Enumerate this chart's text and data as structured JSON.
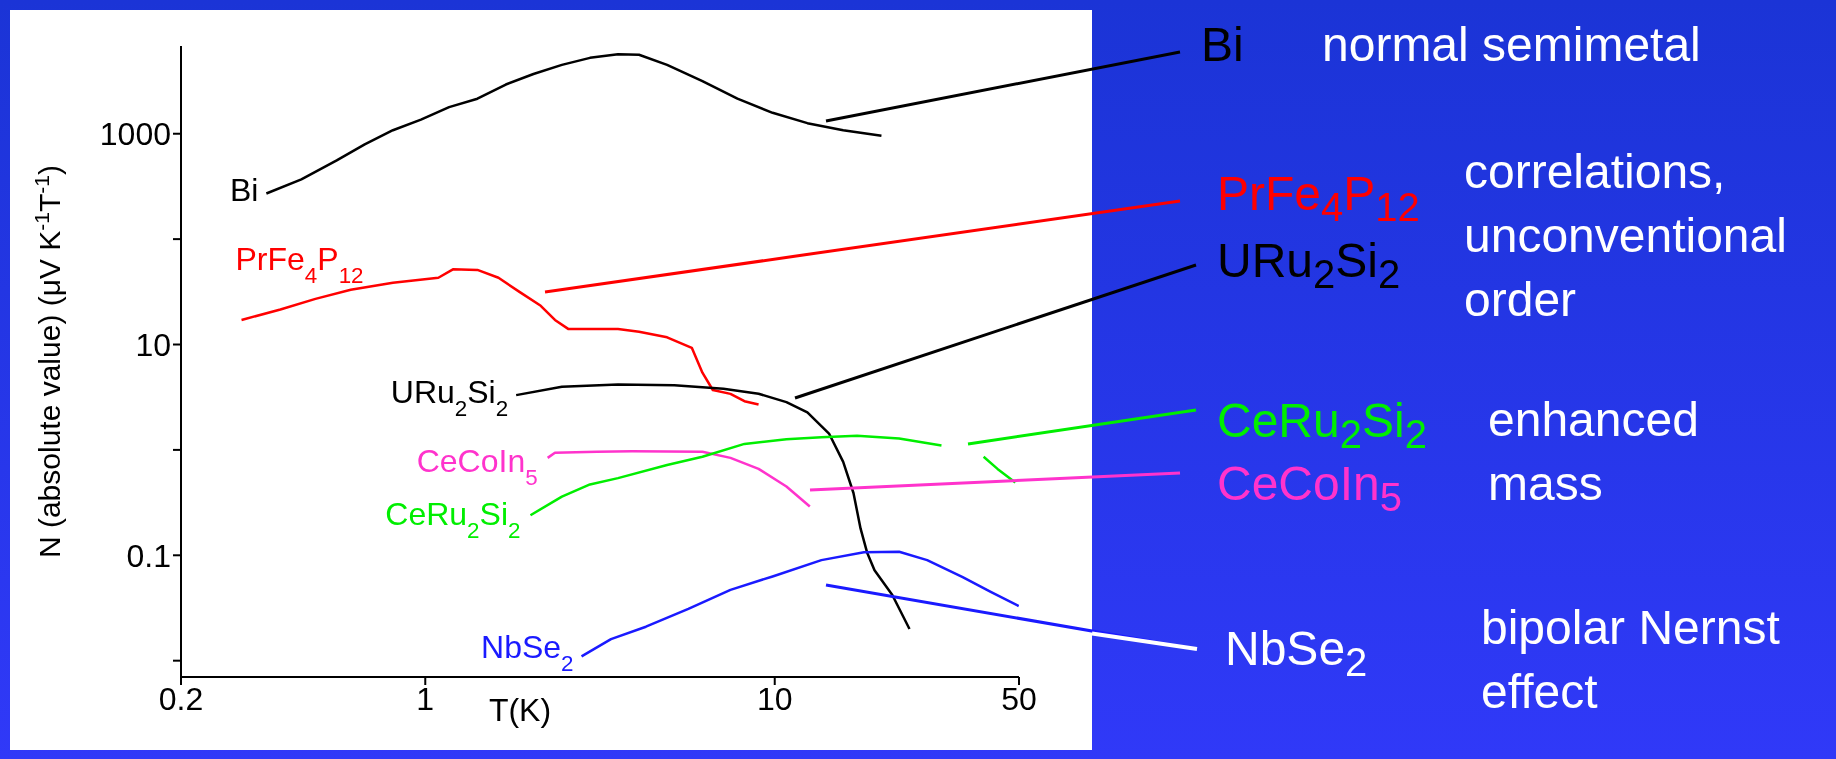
{
  "chart_data": {
    "type": "line",
    "xlabel": "T(K)",
    "ylabel": "N (absolute value) (μV K$^{-1}$T$^{-1}$)",
    "log": "xy",
    "marker": "none",
    "xlim": [
      0.2,
      50
    ],
    "xticks": [
      0.2,
      1,
      10,
      50
    ],
    "ylim": [
      0.007,
      6800
    ],
    "yticks": [
      {
        "value": 0.01,
        "label": null
      },
      0.1,
      {
        "value": 1,
        "label": null
      },
      10,
      {
        "value": 100,
        "label": null
      },
      1000
    ],
    "series": [
      {
        "name": "Bi",
        "color": "#000000",
        "x": [
          0.351,
          0.442,
          0.558,
          0.671,
          0.808,
          0.972,
          1.17,
          1.41,
          1.7,
          2.04,
          2.46,
          2.96,
          3.56,
          4.09,
          4.92,
          6.21,
          7.82,
          9.86,
          12.4,
          15.7,
          20.2
        ],
        "values": [
          271,
          369,
          558,
          794,
          1080,
          1360,
          1790,
          2150,
          2930,
          3690,
          4500,
          5250,
          5670,
          5620,
          4500,
          3160,
          2150,
          1580,
          1260,
          1080,
          955
        ]
      },
      {
        "name": "PrFe$_{4}$P$_{12}$",
        "color": "#ff0000",
        "x": [
          0.298,
          0.385,
          0.485,
          0.612,
          0.808,
          1.09,
          1.2,
          1.41,
          1.62,
          1.86,
          2.14,
          2.35,
          2.57,
          2.96,
          3.56,
          4.09,
          4.92,
          5.79,
          6.21,
          6.65,
          7.47,
          8.19,
          8.99
        ],
        "values": [
          17.1,
          21.5,
          27.1,
          33.1,
          38.6,
          43.0,
          51.7,
          51,
          43,
          31.6,
          23.3,
          17.1,
          14.0,
          14.0,
          14.0,
          13.2,
          11.7,
          9.3,
          5.4,
          3.7,
          3.4,
          2.9,
          2.7
        ]
      },
      {
        "name": "URu$_{2}$Si$_{2}$",
        "color": "#000000",
        "x": [
          1.82,
          2.46,
          3.56,
          5.16,
          7.13,
          8.99,
          10.8,
          12.4,
          14.3,
          15.7,
          16.8,
          17.6,
          18.4,
          19.3,
          21.7,
          24.3
        ],
        "values": [
          3.31,
          3.98,
          4.17,
          4.11,
          3.8,
          3.41,
          2.84,
          2.27,
          1.43,
          0.77,
          0.39,
          0.18,
          0.105,
          0.072,
          0.042,
          0.02
        ]
      },
      {
        "name": "CeCoIn$_{5}$",
        "color": "#ff33cc",
        "x": [
          2.24,
          2.35,
          3.1,
          3.91,
          6.21,
          7.47,
          8.99,
          10.8,
          12.6
        ],
        "values": [
          0.84,
          0.94,
          0.96,
          0.97,
          0.96,
          0.84,
          0.66,
          0.45,
          0.29
        ]
      },
      {
        "name": "CeRu$_{2}$Si$_{2}$",
        "color": "#00ee00",
        "x": [
          2.0,
          2.46,
          2.96,
          3.56,
          4.92,
          6.21,
          8.19,
          10.8,
          13.6,
          17.2,
          22.7,
          30.0,
          32.9,
          39.6,
          43.4,
          48.8
        ],
        "values": [
          0.24,
          0.36,
          0.47,
          0.54,
          0.72,
          0.86,
          1.14,
          1.26,
          1.32,
          1.36,
          1.28,
          1.1,
          null,
          0.86,
          0.66,
          0.49
        ]
      },
      {
        "name": "NbSe$_{2}$",
        "color": "#1a1aff",
        "x": [
          2.8,
          3.4,
          4.28,
          5.66,
          7.47,
          9.86,
          13.6,
          18.0,
          22.7,
          27.3,
          34.5,
          41.5,
          49.9
        ],
        "values": [
          0.011,
          0.016,
          0.021,
          0.031,
          0.047,
          0.063,
          0.09,
          0.107,
          0.108,
          0.09,
          0.062,
          0.045,
          0.033
        ]
      }
    ],
    "annotations": [
      "Bi",
      "normal semimetal",
      "PrFe$_{4}$P$_{12}$",
      "URu$_{2}$Si$_{2}$",
      "correlations, unconventional order",
      "CeRu$_{2}$Si$_{2}$",
      "CeCoIn$_{5}$",
      "enhanced mass",
      "NbSe$_{2}$",
      "bipolar Nernst effect"
    ]
  }
}
